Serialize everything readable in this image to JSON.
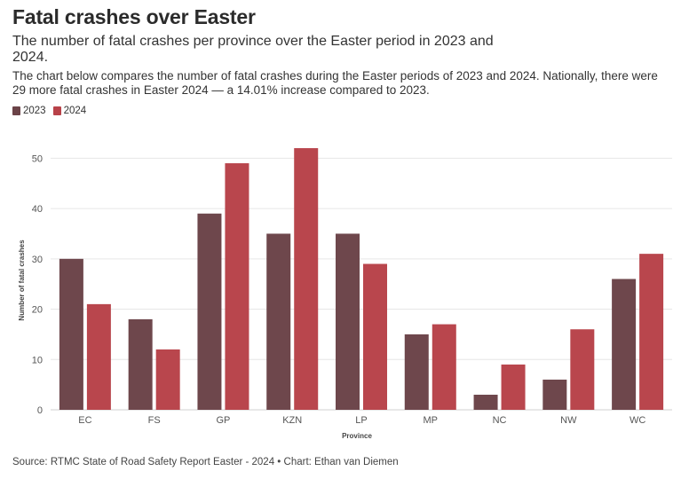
{
  "header": {
    "title": "Fatal crashes over Easter",
    "subtitle": "The number of fatal crashes per province over the Easter period in 2023 and 2024.",
    "description": "The chart below compares the number of fatal crashes during the Easter periods of 2023 and 2024. Nationally, there were 29 more fatal crashes in Easter 2024 — a 14.01% increase compared to 2023."
  },
  "legend": {
    "items": [
      {
        "label": "2023",
        "color": "#6b4348"
      },
      {
        "label": "2024",
        "color": "#b84249"
      }
    ]
  },
  "footer": {
    "source": "Source: RTMC State of Road Safety Report Easter - 2024 • Chart: Ethan van Diemen"
  },
  "chart_data": {
    "type": "bar",
    "categories": [
      "EC",
      "FS",
      "GP",
      "KZN",
      "LP",
      "MP",
      "NC",
      "NW",
      "WC"
    ],
    "series": [
      {
        "name": "2023",
        "color": "#6b4348",
        "values": [
          30,
          18,
          39,
          35,
          35,
          15,
          3,
          6,
          26
        ]
      },
      {
        "name": "2024",
        "color": "#b84249",
        "values": [
          21,
          12,
          49,
          52,
          29,
          17,
          9,
          16,
          31
        ]
      }
    ],
    "xlabel": "Province",
    "ylabel": "Number of fatal crashes",
    "ylim": [
      0,
      55
    ],
    "yticks": [
      0,
      10,
      20,
      30,
      40,
      50
    ],
    "grid": true,
    "legend_position": "top-left"
  }
}
